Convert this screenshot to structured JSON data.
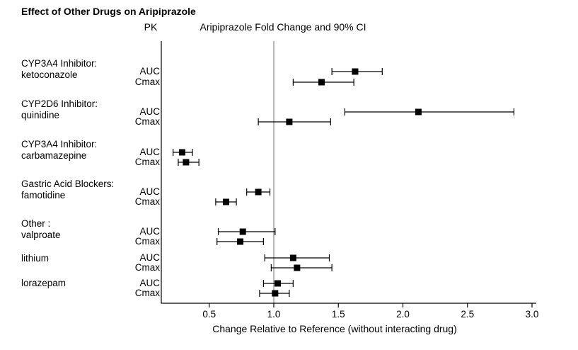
{
  "title": "Effect of Other Drugs on Aripiprazole",
  "headers": {
    "pk": "PK",
    "plot": "Aripiprazole Fold Change and 90% CI"
  },
  "axis": {
    "label": "Change Relative to Reference (without interacting drug)",
    "ticks": [
      0.5,
      1.0,
      1.5,
      2.0,
      2.5,
      3.0
    ],
    "tick_labels": [
      "0.5",
      "1.0",
      "1.5",
      "2.0",
      "2.5",
      "3.0"
    ]
  },
  "chart_data": {
    "type": "scatter",
    "variant": "forest",
    "title": "Effect of Other Drugs on Aripiprazole",
    "xlabel": "Change Relative to Reference (without interacting drug)",
    "ylabel": "",
    "xlim": [
      0.13,
      3.03
    ],
    "reference_line": 1.0,
    "ci_level": "90% CI",
    "legend": "none",
    "grid": false,
    "groups": [
      {
        "label_lines": [
          "CYP3A4 Inhibitor:",
          "ketoconazole"
        ],
        "rows": [
          {
            "metric": "AUC",
            "estimate": 1.63,
            "ci_low": 1.45,
            "ci_high": 1.84
          },
          {
            "metric": "Cmax",
            "estimate": 1.37,
            "ci_low": 1.15,
            "ci_high": 1.62
          }
        ]
      },
      {
        "label_lines": [
          "CYP2D6 Inhibitor:",
          "quinidine"
        ],
        "rows": [
          {
            "metric": "AUC",
            "estimate": 2.12,
            "ci_low": 1.55,
            "ci_high": 2.86
          },
          {
            "metric": "Cmax",
            "estimate": 1.12,
            "ci_low": 0.88,
            "ci_high": 1.44
          }
        ]
      },
      {
        "label_lines": [
          "CYP3A4 Inhibitor:",
          "carbamazepine"
        ],
        "rows": [
          {
            "metric": "AUC",
            "estimate": 0.29,
            "ci_low": 0.22,
            "ci_high": 0.37
          },
          {
            "metric": "Cmax",
            "estimate": 0.32,
            "ci_low": 0.26,
            "ci_high": 0.42
          }
        ]
      },
      {
        "label_lines": [
          "Gastric Acid Blockers:",
          "famotidine"
        ],
        "rows": [
          {
            "metric": "AUC",
            "estimate": 0.88,
            "ci_low": 0.79,
            "ci_high": 0.97
          },
          {
            "metric": "Cmax",
            "estimate": 0.63,
            "ci_low": 0.55,
            "ci_high": 0.71
          }
        ]
      },
      {
        "label_lines": [
          "Other :",
          "valproate"
        ],
        "rows": [
          {
            "metric": "AUC",
            "estimate": 0.76,
            "ci_low": 0.57,
            "ci_high": 1.01
          },
          {
            "metric": "Cmax",
            "estimate": 0.74,
            "ci_low": 0.56,
            "ci_high": 0.92
          }
        ]
      },
      {
        "label_lines": [
          "lithium"
        ],
        "rows": [
          {
            "metric": "AUC",
            "estimate": 1.15,
            "ci_low": 0.93,
            "ci_high": 1.43
          },
          {
            "metric": "Cmax",
            "estimate": 1.18,
            "ci_low": 0.98,
            "ci_high": 1.45
          }
        ]
      },
      {
        "label_lines": [
          "lorazepam"
        ],
        "rows": [
          {
            "metric": "AUC",
            "estimate": 1.03,
            "ci_low": 0.92,
            "ci_high": 1.15
          },
          {
            "metric": "Cmax",
            "estimate": 1.01,
            "ci_low": 0.89,
            "ci_high": 1.12
          }
        ]
      }
    ]
  }
}
